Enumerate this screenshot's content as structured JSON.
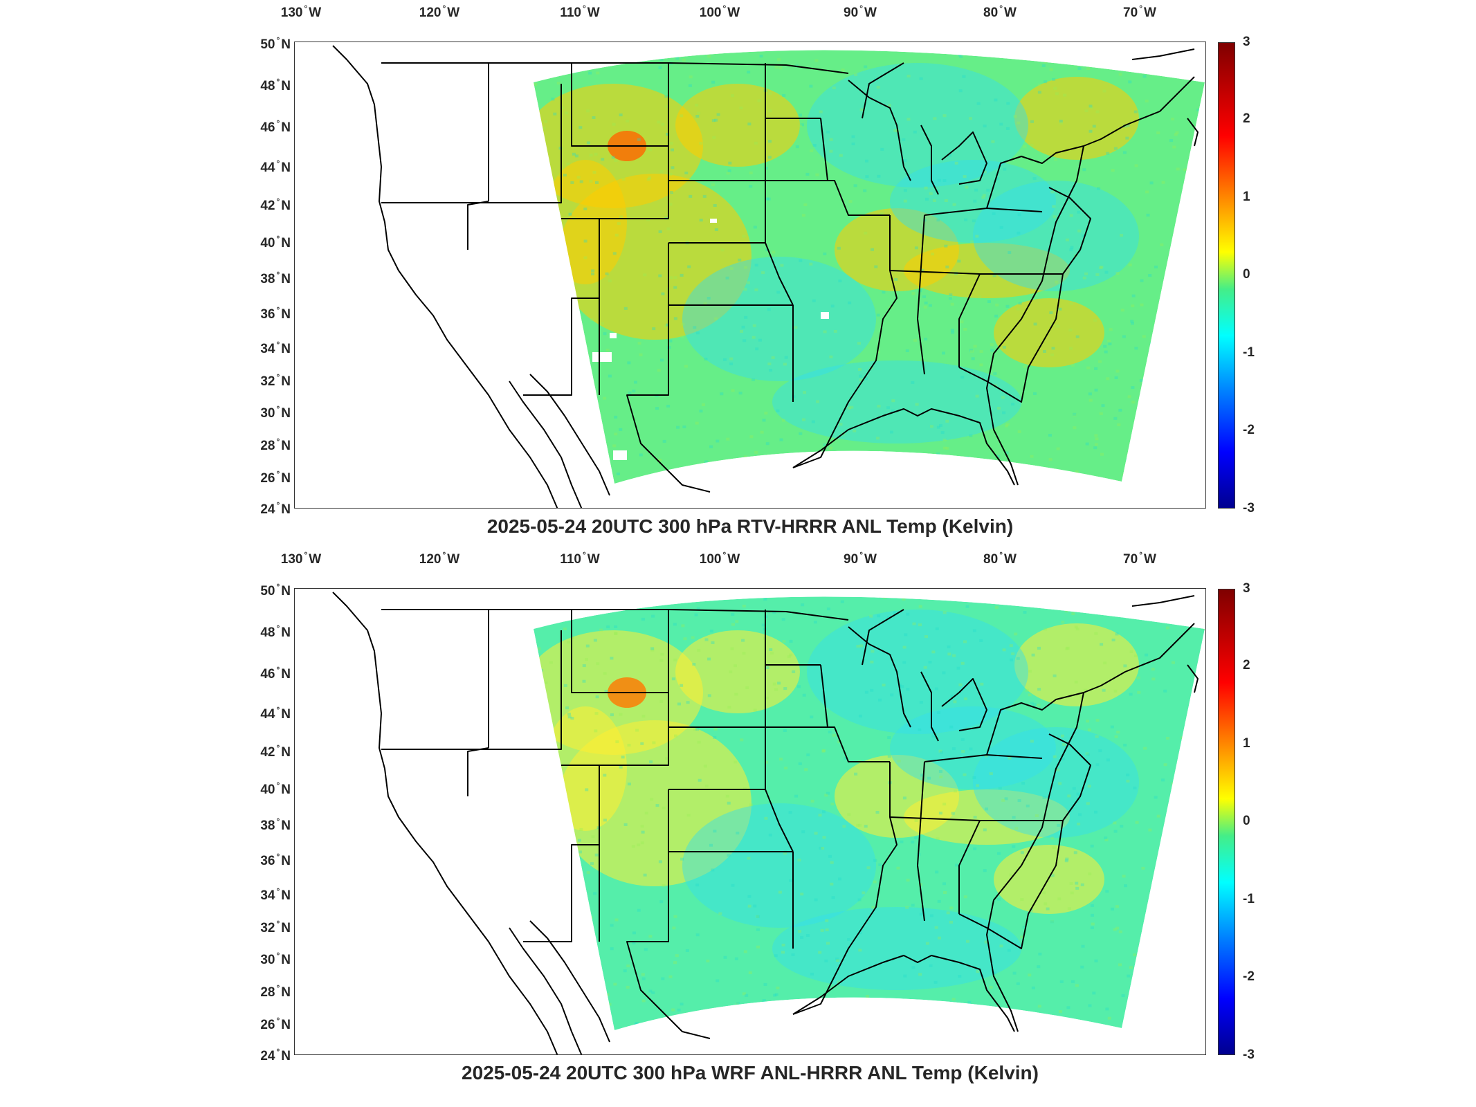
{
  "lon_labels": [
    {
      "value": "130",
      "hemi": "W"
    },
    {
      "value": "120",
      "hemi": "W"
    },
    {
      "value": "110",
      "hemi": "W"
    },
    {
      "value": "100",
      "hemi": "W"
    },
    {
      "value": "90",
      "hemi": "W"
    },
    {
      "value": "80",
      "hemi": "W"
    },
    {
      "value": "70",
      "hemi": "W"
    }
  ],
  "lat_labels": [
    {
      "value": "50",
      "hemi": "N"
    },
    {
      "value": "48",
      "hemi": "N"
    },
    {
      "value": "46",
      "hemi": "N"
    },
    {
      "value": "44",
      "hemi": "N"
    },
    {
      "value": "42",
      "hemi": "N"
    },
    {
      "value": "40",
      "hemi": "N"
    },
    {
      "value": "38",
      "hemi": "N"
    },
    {
      "value": "36",
      "hemi": "N"
    },
    {
      "value": "34",
      "hemi": "N"
    },
    {
      "value": "32",
      "hemi": "N"
    },
    {
      "value": "30",
      "hemi": "N"
    },
    {
      "value": "28",
      "hemi": "N"
    },
    {
      "value": "26",
      "hemi": "N"
    },
    {
      "value": "24",
      "hemi": "N"
    }
  ],
  "colorbar": {
    "ticks": [
      "3",
      "2",
      "1",
      "0",
      "-1",
      "-2",
      "-3"
    ],
    "range": [
      -3,
      3
    ],
    "colormap": "jet",
    "colors": [
      "#7f0000",
      "#ff0000",
      "#ff9900",
      "#ffff00",
      "#44ee88",
      "#00ffff",
      "#0080ff",
      "#0000ff",
      "#00008f"
    ]
  },
  "panels": [
    {
      "title": "2025-05-24 20UTC 300 hPa RTV-HRRR ANL Temp (Kelvin)",
      "dominant_color": "#66ee88",
      "warm_color": "#ffcc00",
      "hot_color": "#ff6600"
    },
    {
      "title": "2025-05-24 20UTC 300 hPa WRF ANL-HRRR ANL Temp (Kelvin)",
      "dominant_color": "#55eeaa",
      "warm_color": "#ffee33",
      "hot_color": "#ff7700"
    }
  ],
  "map": {
    "projection": "Lambert conformal (CONUS)",
    "lon_range": [
      -130,
      -65
    ],
    "lat_range": [
      24,
      50
    ],
    "coastlines": true,
    "state_borders": true
  }
}
